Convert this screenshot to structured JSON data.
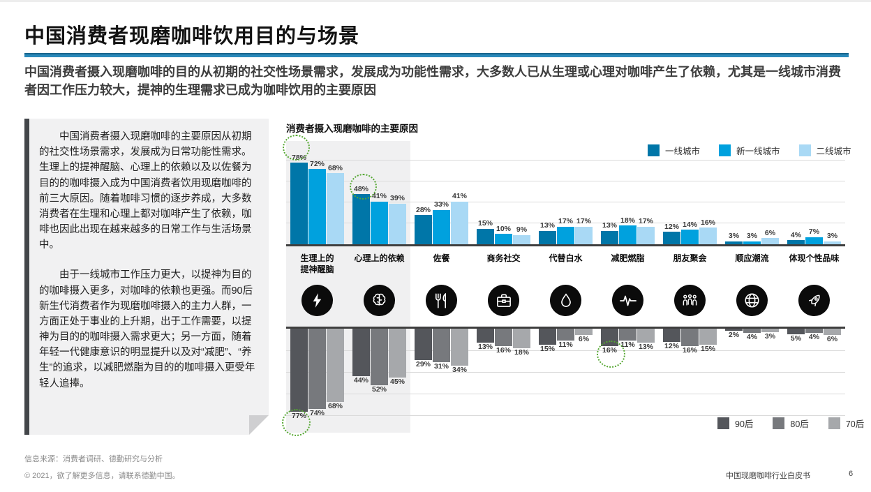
{
  "header": {
    "title": "中国消费者现磨咖啡饮用目的与场景",
    "subtitle": "中国消费者摄入现磨咖啡的目的从初期的社交性场景需求，发展成为功能性需求，大多数人已从生理或心理对咖啡产生了依赖，尤其是一线城市消费者因工作压力较大，提神的生理需求已成为咖啡饮用的主要原因"
  },
  "note_box": {
    "paragraph1": "中国消费者摄入现磨咖啡的主要原因从初期的社交性场景需求，发展成为日常功能性需求。生理上的提神醒脑、心理上的依赖以及以佐餐为目的的咖啡摄入成为中国消费者饮用现磨咖啡的前三大原因。随着咖啡习惯的逐步养成，大多数消费者在生理和心理上都对咖啡产生了依赖，咖啡也因此出现在越来越多的日常工作与生活场景中。",
    "paragraph2": "由于一线城市工作压力更大，以提神为目的的咖啡摄入更多，对咖啡的依赖也更强。而90后新生代消费者作为现磨咖啡摄入的主力人群，一方面正处于事业的上升期，出于工作需要，以提神为目的的咖啡摄入需求更大；另一方面，随着年轻一代健康意识的明显提升以及对“减肥”、“养生”的追求，以减肥燃脂为目的的咖啡摄入更受年轻人追捧。"
  },
  "chart_data": {
    "type": "bar",
    "title": "消费者摄入现磨咖啡的主要原因",
    "unit": "%",
    "grid": true,
    "categories": [
      "生理上的\n提神醒脑",
      "心理上的依赖",
      "佐餐",
      "商务社交",
      "代替白水",
      "减肥燃脂",
      "朋友聚会",
      "顺应潮流",
      "体现个性品味"
    ],
    "icons": [
      "lightning-icon",
      "brain-icon",
      "utensils-icon",
      "briefcase-icon",
      "droplet-icon",
      "pulse-icon",
      "people-icon",
      "globe-icon",
      "rocket-icon"
    ],
    "top_chart": {
      "orientation": "up",
      "legend_position": "top-right",
      "ylim": [
        0,
        80
      ],
      "series": [
        {
          "name": "一线城市",
          "color": "#0076a8",
          "values": [
            78,
            48,
            28,
            15,
            13,
            13,
            12,
            3,
            4
          ]
        },
        {
          "name": "新一线城市",
          "color": "#00a1de",
          "values": [
            72,
            41,
            33,
            10,
            17,
            18,
            14,
            3,
            7
          ]
        },
        {
          "name": "二线城市",
          "color": "#a9d9f5",
          "values": [
            68,
            39,
            41,
            9,
            17,
            17,
            16,
            6,
            3
          ]
        }
      ]
    },
    "bottom_chart": {
      "orientation": "down",
      "legend_position": "bottom-right",
      "ylim": [
        0,
        80
      ],
      "series": [
        {
          "name": "90后",
          "color": "#54565b",
          "values": [
            77,
            44,
            29,
            13,
            15,
            16,
            12,
            2,
            5
          ]
        },
        {
          "name": "80后",
          "color": "#77797d",
          "values": [
            74,
            52,
            31,
            16,
            11,
            11,
            16,
            4,
            4
          ]
        },
        {
          "name": "70后",
          "color": "#a6a8ab",
          "values": [
            68,
            45,
            34,
            18,
            6,
            13,
            15,
            3,
            6
          ]
        }
      ]
    },
    "highlighted_values": [
      "78%",
      "48%",
      "77%",
      "16%"
    ],
    "highlight_color": "#55a732",
    "highlighted_category_band": "生理上的提神醒脑 + 心理上的依赖"
  },
  "footer": {
    "source": "信息来源：消费者调研、德勤研究与分析",
    "copyright": "© 2021，欲了解更多信息，请联系德勤中国。",
    "doc_title": "中国现磨咖啡行业白皮书",
    "page_number": "6"
  }
}
